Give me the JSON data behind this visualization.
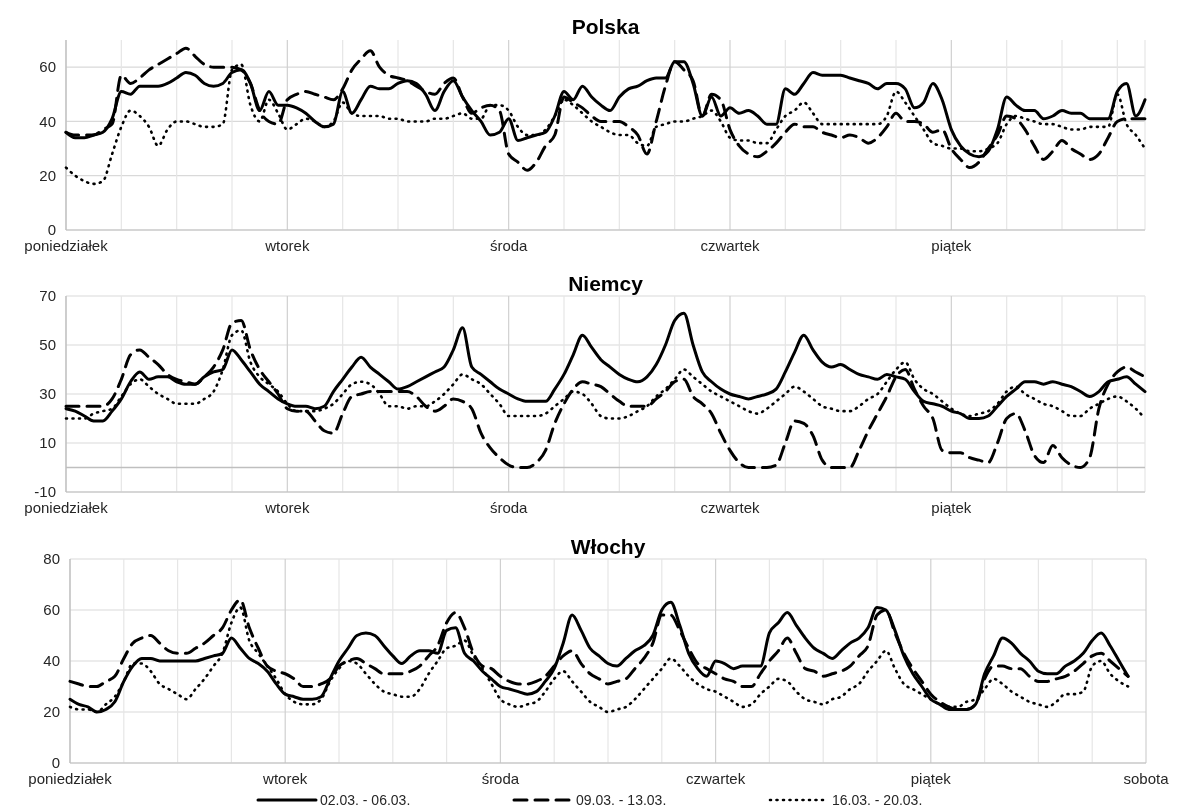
{
  "chart_data": [
    {
      "type": "line",
      "title": "Polska",
      "ylim": [
        0,
        70
      ],
      "yticks": [
        0,
        20,
        40,
        60
      ],
      "grid": true,
      "legend": false,
      "categories": [
        "poniedziałek",
        null,
        null,
        null,
        null,
        null,
        null,
        null,
        null,
        null,
        null,
        null,
        null,
        null,
        null,
        null,
        null,
        null,
        null,
        null,
        null,
        null,
        null,
        null,
        "wtorek",
        null,
        null,
        null,
        null,
        null,
        null,
        null,
        null,
        null,
        null,
        null,
        null,
        null,
        null,
        null,
        null,
        null,
        null,
        null,
        null,
        null,
        null,
        null,
        "środa",
        null,
        null,
        null,
        null,
        null,
        null,
        null,
        null,
        null,
        null,
        null,
        null,
        null,
        null,
        null,
        null,
        null,
        null,
        null,
        null,
        null,
        null,
        null,
        "czwartek",
        null,
        null,
        null,
        null,
        null,
        null,
        null,
        null,
        null,
        null,
        null,
        null,
        null,
        null,
        null,
        null,
        null,
        null,
        null,
        null,
        null,
        null,
        null,
        "piątek",
        null,
        null,
        null,
        null,
        null,
        null,
        null,
        null,
        null,
        null,
        null,
        null,
        null,
        null,
        null,
        null,
        null,
        null,
        null,
        null,
        null
      ],
      "series": [
        {
          "color": "#000000",
          "line_style": "solid",
          "values": [
            36,
            34,
            34,
            35,
            36,
            41,
            51,
            50,
            53,
            53,
            53,
            54,
            56,
            58,
            57,
            54,
            53,
            54,
            58,
            59,
            54,
            44,
            51,
            46,
            46,
            45,
            43,
            40,
            38,
            39,
            51,
            43,
            48,
            53,
            52,
            52,
            54,
            55,
            54,
            50,
            44,
            51,
            55,
            49,
            44,
            40,
            35,
            36,
            41,
            33,
            34,
            35,
            36,
            42,
            51,
            48,
            53,
            49,
            46,
            44,
            49,
            52,
            53,
            55,
            56,
            56,
            62,
            62,
            54,
            42,
            49,
            42,
            45,
            43,
            44,
            42,
            39,
            39,
            52,
            50,
            54,
            58,
            57,
            57,
            57,
            56,
            55,
            54,
            52,
            54,
            54,
            52,
            45,
            47,
            54,
            48,
            37,
            31,
            28,
            27,
            29,
            37,
            49,
            46,
            44,
            44,
            41,
            42,
            44,
            43,
            43,
            41,
            41,
            41,
            51,
            54,
            42,
            48
          ]
        },
        {
          "color": "#000000",
          "line_style": "dashed",
          "values": [
            36,
            35,
            35,
            35,
            37,
            39,
            57,
            54,
            56,
            59,
            61,
            63,
            65,
            67,
            64,
            61,
            60,
            60,
            60,
            59,
            54,
            44,
            40,
            39,
            48,
            50,
            51,
            50,
            49,
            48,
            52,
            59,
            63,
            66,
            60,
            57,
            56,
            55,
            53,
            51,
            50,
            54,
            56,
            49,
            43,
            45,
            46,
            44,
            28,
            25,
            22,
            25,
            31,
            35,
            49,
            47,
            45,
            42,
            40,
            40,
            40,
            38,
            35,
            28,
            40,
            53,
            62,
            59,
            55,
            42,
            50,
            48,
            37,
            31,
            28,
            27,
            29,
            32,
            36,
            39,
            38,
            38,
            36,
            35,
            34,
            35,
            34,
            32,
            34,
            38,
            43,
            40,
            40,
            39,
            36,
            37,
            30,
            26,
            23,
            25,
            30,
            35,
            42,
            41,
            37,
            31,
            26,
            29,
            33,
            30,
            28,
            26,
            28,
            34,
            40,
            41,
            41,
            41
          ]
        },
        {
          "color": "#000000",
          "line_style": "dotted",
          "values": [
            23,
            20,
            18,
            17,
            18,
            28,
            38,
            44,
            42,
            38,
            31,
            37,
            40,
            40,
            39,
            38,
            38,
            39,
            59,
            61,
            46,
            40,
            48,
            43,
            37,
            39,
            41,
            40,
            38,
            40,
            47,
            43,
            42,
            42,
            42,
            41,
            41,
            40,
            40,
            40,
            41,
            41,
            42,
            43,
            41,
            41,
            46,
            46,
            44,
            38,
            35,
            35,
            37,
            42,
            48,
            46,
            43,
            40,
            38,
            36,
            35,
            35,
            32,
            31,
            38,
            39,
            40,
            40,
            41,
            42,
            44,
            40,
            34,
            33,
            33,
            32,
            32,
            37,
            42,
            44,
            47,
            43,
            39,
            39,
            39,
            39,
            39,
            39,
            39,
            42,
            51,
            47,
            42,
            37,
            32,
            31,
            30,
            30,
            29,
            29,
            30,
            32,
            39,
            42,
            41,
            40,
            39,
            39,
            38,
            37,
            37,
            38,
            38,
            38,
            50,
            39,
            35,
            30
          ]
        }
      ]
    },
    {
      "type": "line",
      "title": "Niemcy",
      "ylim": [
        -10,
        70
      ],
      "yticks": [
        -10,
        10,
        30,
        50,
        70
      ],
      "grid": true,
      "legend": false,
      "ref_lines": [
        {
          "axis": "y",
          "value": 0,
          "color": "#bfbfbf"
        }
      ],
      "categories": [
        "poniedziałek",
        null,
        null,
        null,
        null,
        null,
        null,
        null,
        null,
        null,
        null,
        null,
        null,
        null,
        null,
        null,
        null,
        null,
        null,
        null,
        null,
        null,
        null,
        null,
        "wtorek",
        null,
        null,
        null,
        null,
        null,
        null,
        null,
        null,
        null,
        null,
        null,
        null,
        null,
        null,
        null,
        null,
        null,
        null,
        null,
        null,
        null,
        null,
        null,
        "środa",
        null,
        null,
        null,
        null,
        null,
        null,
        null,
        null,
        null,
        null,
        null,
        null,
        null,
        null,
        null,
        null,
        null,
        null,
        null,
        null,
        null,
        null,
        null,
        "czwartek",
        null,
        null,
        null,
        null,
        null,
        null,
        null,
        null,
        null,
        null,
        null,
        null,
        null,
        null,
        null,
        null,
        null,
        null,
        null,
        null,
        null,
        null,
        null,
        "piątek",
        null,
        null,
        null,
        null,
        null,
        null,
        null,
        null,
        null,
        null,
        null,
        null,
        null,
        null,
        null,
        null,
        null,
        null,
        null,
        null,
        null
      ],
      "series": [
        {
          "color": "#000000",
          "line_style": "solid",
          "values": [
            24,
            23,
            21,
            19,
            19,
            23,
            28,
            35,
            39,
            36,
            37,
            37,
            35,
            34,
            34,
            37,
            39,
            40,
            48,
            44,
            39,
            34,
            31,
            28,
            26,
            25,
            25,
            24,
            25,
            31,
            36,
            41,
            45,
            41,
            38,
            35,
            32,
            33,
            35,
            37,
            39,
            41,
            48,
            57,
            41,
            38,
            35,
            32,
            30,
            28,
            27,
            27,
            27,
            32,
            38,
            46,
            54,
            49,
            44,
            41,
            38,
            36,
            35,
            37,
            42,
            50,
            60,
            63,
            50,
            39,
            35,
            32,
            30,
            29,
            28,
            29,
            30,
            32,
            39,
            47,
            54,
            48,
            43,
            41,
            42,
            40,
            38,
            37,
            36,
            38,
            37,
            36,
            31,
            27,
            26,
            25,
            23,
            22,
            20,
            20,
            21,
            25,
            29,
            32,
            35,
            35,
            34,
            35,
            34,
            33,
            31,
            29,
            31,
            35,
            36,
            37,
            34,
            31
          ]
        },
        {
          "color": "#000000",
          "line_style": "dashed",
          "values": [
            25,
            25,
            25,
            25,
            25,
            28,
            36,
            46,
            48,
            45,
            42,
            38,
            36,
            35,
            34,
            37,
            41,
            48,
            59,
            60,
            48,
            40,
            35,
            30,
            24,
            23,
            23,
            19,
            15,
            14,
            22,
            29,
            30,
            31,
            31,
            31,
            31,
            31,
            29,
            25,
            23,
            25,
            28,
            27,
            24,
            14,
            8,
            4,
            1,
            0,
            0,
            2,
            7,
            18,
            26,
            32,
            35,
            34,
            33,
            30,
            27,
            25,
            25,
            25,
            28,
            31,
            35,
            36,
            29,
            26,
            22,
            14,
            7,
            2,
            0,
            0,
            0,
            1,
            10,
            19,
            18,
            13,
            3,
            0,
            0,
            0,
            7,
            15,
            22,
            29,
            37,
            40,
            32,
            25,
            20,
            7,
            6,
            6,
            4,
            3,
            2,
            10,
            20,
            22,
            15,
            5,
            2,
            9,
            4,
            1,
            0,
            4,
            24,
            34,
            39,
            41,
            39,
            37
          ]
        },
        {
          "color": "#000000",
          "line_style": "dotted",
          "values": [
            20,
            20,
            20,
            22,
            23,
            24,
            29,
            34,
            36,
            33,
            30,
            28,
            26,
            26,
            26,
            28,
            31,
            40,
            54,
            56,
            43,
            37,
            34,
            31,
            26,
            23,
            23,
            23,
            24,
            26,
            30,
            34,
            35,
            34,
            30,
            25,
            25,
            24,
            25,
            25,
            27,
            30,
            34,
            38,
            36,
            34,
            30,
            26,
            21,
            21,
            21,
            21,
            22,
            25,
            28,
            31,
            30,
            26,
            21,
            20,
            20,
            21,
            23,
            25,
            29,
            32,
            36,
            40,
            37,
            34,
            31,
            29,
            27,
            25,
            23,
            22,
            24,
            27,
            30,
            33,
            31,
            28,
            25,
            24,
            23,
            23,
            25,
            28,
            30,
            35,
            40,
            43,
            36,
            32,
            30,
            27,
            24,
            22,
            21,
            22,
            23,
            26,
            31,
            33,
            30,
            28,
            26,
            25,
            23,
            21,
            21,
            24,
            26,
            28,
            29,
            27,
            24,
            20
          ]
        }
      ]
    },
    {
      "type": "line",
      "title": "Włochy",
      "ylim": [
        0,
        80
      ],
      "yticks": [
        0,
        20,
        40,
        60,
        80
      ],
      "grid": true,
      "legend": "bottom",
      "categories": [
        "poniedziałek",
        null,
        null,
        null,
        null,
        null,
        null,
        null,
        null,
        null,
        null,
        null,
        null,
        null,
        null,
        null,
        null,
        null,
        null,
        null,
        null,
        null,
        null,
        null,
        "wtorek",
        null,
        null,
        null,
        null,
        null,
        null,
        null,
        null,
        null,
        null,
        null,
        null,
        null,
        null,
        null,
        null,
        null,
        null,
        null,
        null,
        null,
        null,
        null,
        "środa",
        null,
        null,
        null,
        null,
        null,
        null,
        null,
        null,
        null,
        null,
        null,
        null,
        null,
        null,
        null,
        null,
        null,
        null,
        null,
        null,
        null,
        null,
        null,
        "czwartek",
        null,
        null,
        null,
        null,
        null,
        null,
        null,
        null,
        null,
        null,
        null,
        null,
        null,
        null,
        null,
        null,
        null,
        null,
        null,
        null,
        null,
        null,
        null,
        "piątek",
        null,
        null,
        null,
        null,
        null,
        null,
        null,
        null,
        null,
        null,
        null,
        null,
        null,
        null,
        null,
        null,
        null,
        null,
        null,
        null,
        null,
        null,
        null,
        "sobota"
      ],
      "series": [
        {
          "name": "02.03. - 06.03.",
          "color": "#000000",
          "line_style": "solid",
          "values": [
            25,
            23,
            22,
            20,
            21,
            24,
            32,
            38,
            41,
            41,
            40,
            40,
            40,
            40,
            40,
            41,
            42,
            43,
            49,
            45,
            41,
            39,
            36,
            31,
            27,
            26,
            25,
            25,
            26,
            33,
            40,
            45,
            50,
            51,
            50,
            46,
            42,
            39,
            42,
            44,
            44,
            43,
            52,
            53,
            43,
            40,
            36,
            33,
            30,
            29,
            28,
            27,
            28,
            32,
            37,
            47,
            58,
            52,
            45,
            42,
            39,
            38,
            41,
            44,
            46,
            50,
            60,
            63,
            54,
            43,
            37,
            34,
            40,
            39,
            37,
            38,
            38,
            38,
            51,
            55,
            59,
            54,
            49,
            45,
            43,
            41,
            44,
            47,
            49,
            53,
            61,
            60,
            52,
            42,
            35,
            30,
            25,
            23,
            21,
            21,
            21,
            23,
            35,
            42,
            49,
            47,
            43,
            40,
            36,
            35,
            35,
            38,
            40,
            43,
            48,
            51,
            46,
            40,
            34,
            null,
            null
          ]
        },
        {
          "name": "09.03. - 13.03.",
          "color": "#000000",
          "line_style": "dashed",
          "values": [
            32,
            31,
            30,
            30,
            32,
            34,
            41,
            47,
            49,
            50,
            47,
            44,
            43,
            43,
            45,
            47,
            50,
            53,
            60,
            64,
            53,
            45,
            38,
            36,
            35,
            33,
            30,
            30,
            31,
            33,
            38,
            40,
            41,
            39,
            37,
            35,
            35,
            35,
            36,
            38,
            42,
            46,
            55,
            59,
            53,
            43,
            38,
            37,
            34,
            32,
            31,
            31,
            32,
            34,
            38,
            42,
            44,
            39,
            35,
            33,
            31,
            32,
            33,
            37,
            41,
            47,
            58,
            58,
            52,
            45,
            39,
            37,
            35,
            33,
            32,
            30,
            30,
            35,
            40,
            44,
            49,
            43,
            37,
            36,
            34,
            35,
            36,
            38,
            42,
            46,
            58,
            60,
            51,
            43,
            37,
            32,
            27,
            24,
            22,
            21,
            21,
            23,
            33,
            38,
            38,
            37,
            37,
            34,
            32,
            32,
            33,
            34,
            36,
            39,
            42,
            43,
            40,
            37,
            34,
            null,
            null
          ]
        },
        {
          "name": "16.03. - 20.03.",
          "color": "#000000",
          "line_style": "dotted",
          "values": [
            22,
            21,
            21,
            20,
            23,
            26,
            32,
            39,
            39,
            36,
            31,
            29,
            27,
            25,
            29,
            33,
            38,
            43,
            55,
            61,
            48,
            43,
            38,
            33,
            27,
            24,
            23,
            23,
            25,
            32,
            37,
            40,
            39,
            35,
            31,
            28,
            27,
            26,
            26,
            29,
            35,
            40,
            45,
            46,
            48,
            42,
            37,
            31,
            25,
            23,
            22,
            23,
            24,
            28,
            33,
            36,
            32,
            28,
            24,
            22,
            20,
            21,
            22,
            25,
            29,
            33,
            37,
            41,
            38,
            34,
            31,
            29,
            28,
            26,
            24,
            22,
            23,
            27,
            30,
            33,
            32,
            28,
            25,
            24,
            23,
            25,
            26,
            29,
            31,
            36,
            40,
            44,
            37,
            31,
            29,
            27,
            25,
            23,
            22,
            22,
            24,
            25,
            29,
            33,
            31,
            28,
            26,
            24,
            23,
            22,
            24,
            27,
            27,
            28,
            38,
            40,
            35,
            32,
            30,
            null,
            null
          ]
        }
      ]
    }
  ]
}
